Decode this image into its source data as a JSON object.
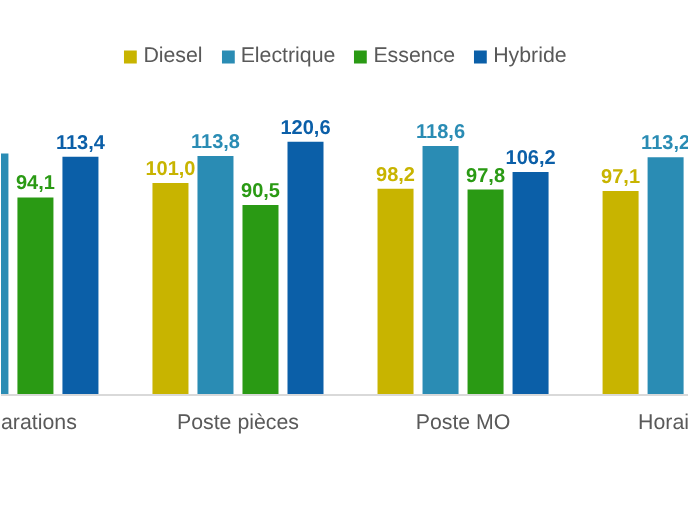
{
  "chart_data": {
    "type": "bar",
    "categories": [
      "arations",
      "Poste pièces",
      "Poste MO",
      "Horai"
    ],
    "series": [
      {
        "name": "Diesel",
        "color": "#c8b400",
        "values": [
          null,
          101.0,
          98.2,
          97.1
        ],
        "value_labels": [
          null,
          "101,0",
          "98,2",
          "97,1"
        ]
      },
      {
        "name": "Electrique",
        "color": "#2a8cb4",
        "values": [
          115,
          113.8,
          118.6,
          113.2
        ],
        "value_labels": [
          null,
          "113,8",
          "118,6",
          "113,2"
        ]
      },
      {
        "name": "Essence",
        "color": "#2a9a14",
        "values": [
          94.1,
          90.5,
          97.8,
          null
        ],
        "value_labels": [
          "94,1",
          "90,5",
          "97,8",
          null
        ]
      },
      {
        "name": "Hybride",
        "color": "#0b5fa8",
        "values": [
          113.4,
          120.6,
          106.2,
          null
        ],
        "value_labels": [
          "113,4",
          "120,6",
          "106,2",
          null
        ]
      }
    ],
    "legend": "top",
    "grid": false
  }
}
